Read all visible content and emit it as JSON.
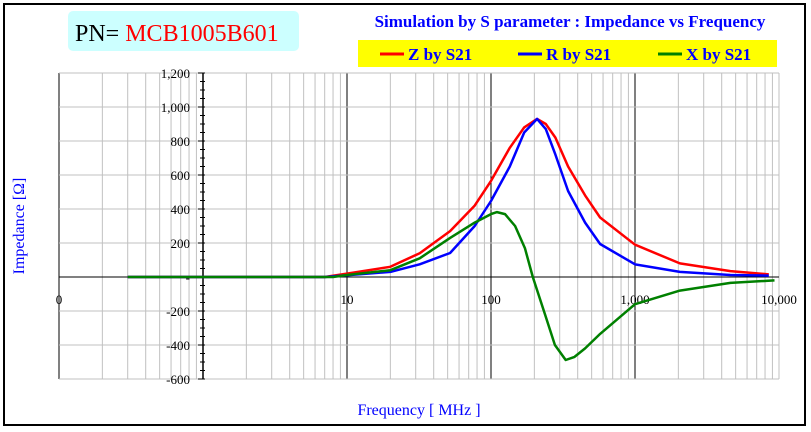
{
  "part_label": {
    "prefix": "PN=",
    "part_number": "MCB1005B601"
  },
  "chart_data": {
    "type": "line",
    "title": "Simulation by S parameter : Impedance vs Frequency",
    "xlabel": "Frequency [ MHz ]",
    "ylabel": "Impedance [Ω]",
    "xscale": "log",
    "xlim": [
      0.1,
      10000
    ],
    "ylim": [
      -600,
      1200
    ],
    "grid": true,
    "legend_position": "top-right",
    "x_ticks": [
      {
        "value": 0.1,
        "label": "0"
      },
      {
        "value": 10,
        "label": "10"
      },
      {
        "value": 100,
        "label": "100"
      },
      {
        "value": 1000,
        "label": "1,000"
      },
      {
        "value": 10000,
        "label": "10,000"
      }
    ],
    "y_ticks": [
      {
        "value": 1200,
        "label": "1,200"
      },
      {
        "value": 1000,
        "label": "1,000"
      },
      {
        "value": 800,
        "label": "800"
      },
      {
        "value": 600,
        "label": "600"
      },
      {
        "value": 400,
        "label": "400"
      },
      {
        "value": 200,
        "label": "200"
      },
      {
        "value": 0,
        "label": "-"
      },
      {
        "value": -200,
        "label": "-200"
      },
      {
        "value": -400,
        "label": "-400"
      },
      {
        "value": -600,
        "label": "-600"
      }
    ],
    "series": [
      {
        "name": "Z by S21",
        "color": "#ff0000",
        "x": [
          0.3,
          7,
          10,
          20,
          32,
          52,
          77,
          100,
          135,
          170,
          209,
          240,
          280,
          343,
          450,
          572,
          1000,
          2050,
          4600,
          8500
        ],
        "y": [
          0,
          0,
          20,
          60,
          140,
          270,
          420,
          565,
          760,
          880,
          930,
          900,
          820,
          650,
          480,
          350,
          190,
          80,
          35,
          15
        ]
      },
      {
        "name": "R by S21",
        "color": "#0000ff",
        "x": [
          0.3,
          7,
          10,
          20,
          32,
          52,
          77,
          100,
          135,
          170,
          209,
          240,
          280,
          343,
          450,
          572,
          1000,
          2050,
          4600,
          8500
        ],
        "y": [
          0,
          0,
          10,
          30,
          75,
          141,
          300,
          447,
          650,
          850,
          930,
          870,
          720,
          506,
          320,
          194,
          75,
          30,
          12,
          8
        ]
      },
      {
        "name": "X by S21",
        "color": "#008000",
        "x": [
          0.3,
          8,
          10,
          20,
          32,
          52,
          77,
          100,
          110,
          125,
          147,
          172,
          195,
          237,
          278,
          330,
          380,
          450,
          572,
          1000,
          2050,
          4600,
          9300
        ],
        "y": [
          0,
          0,
          12,
          40,
          110,
          230,
          320,
          370,
          382,
          370,
          300,
          170,
          0,
          -220,
          -400,
          -488,
          -470,
          -420,
          -335,
          -160,
          -80,
          -35,
          -20
        ]
      }
    ]
  }
}
